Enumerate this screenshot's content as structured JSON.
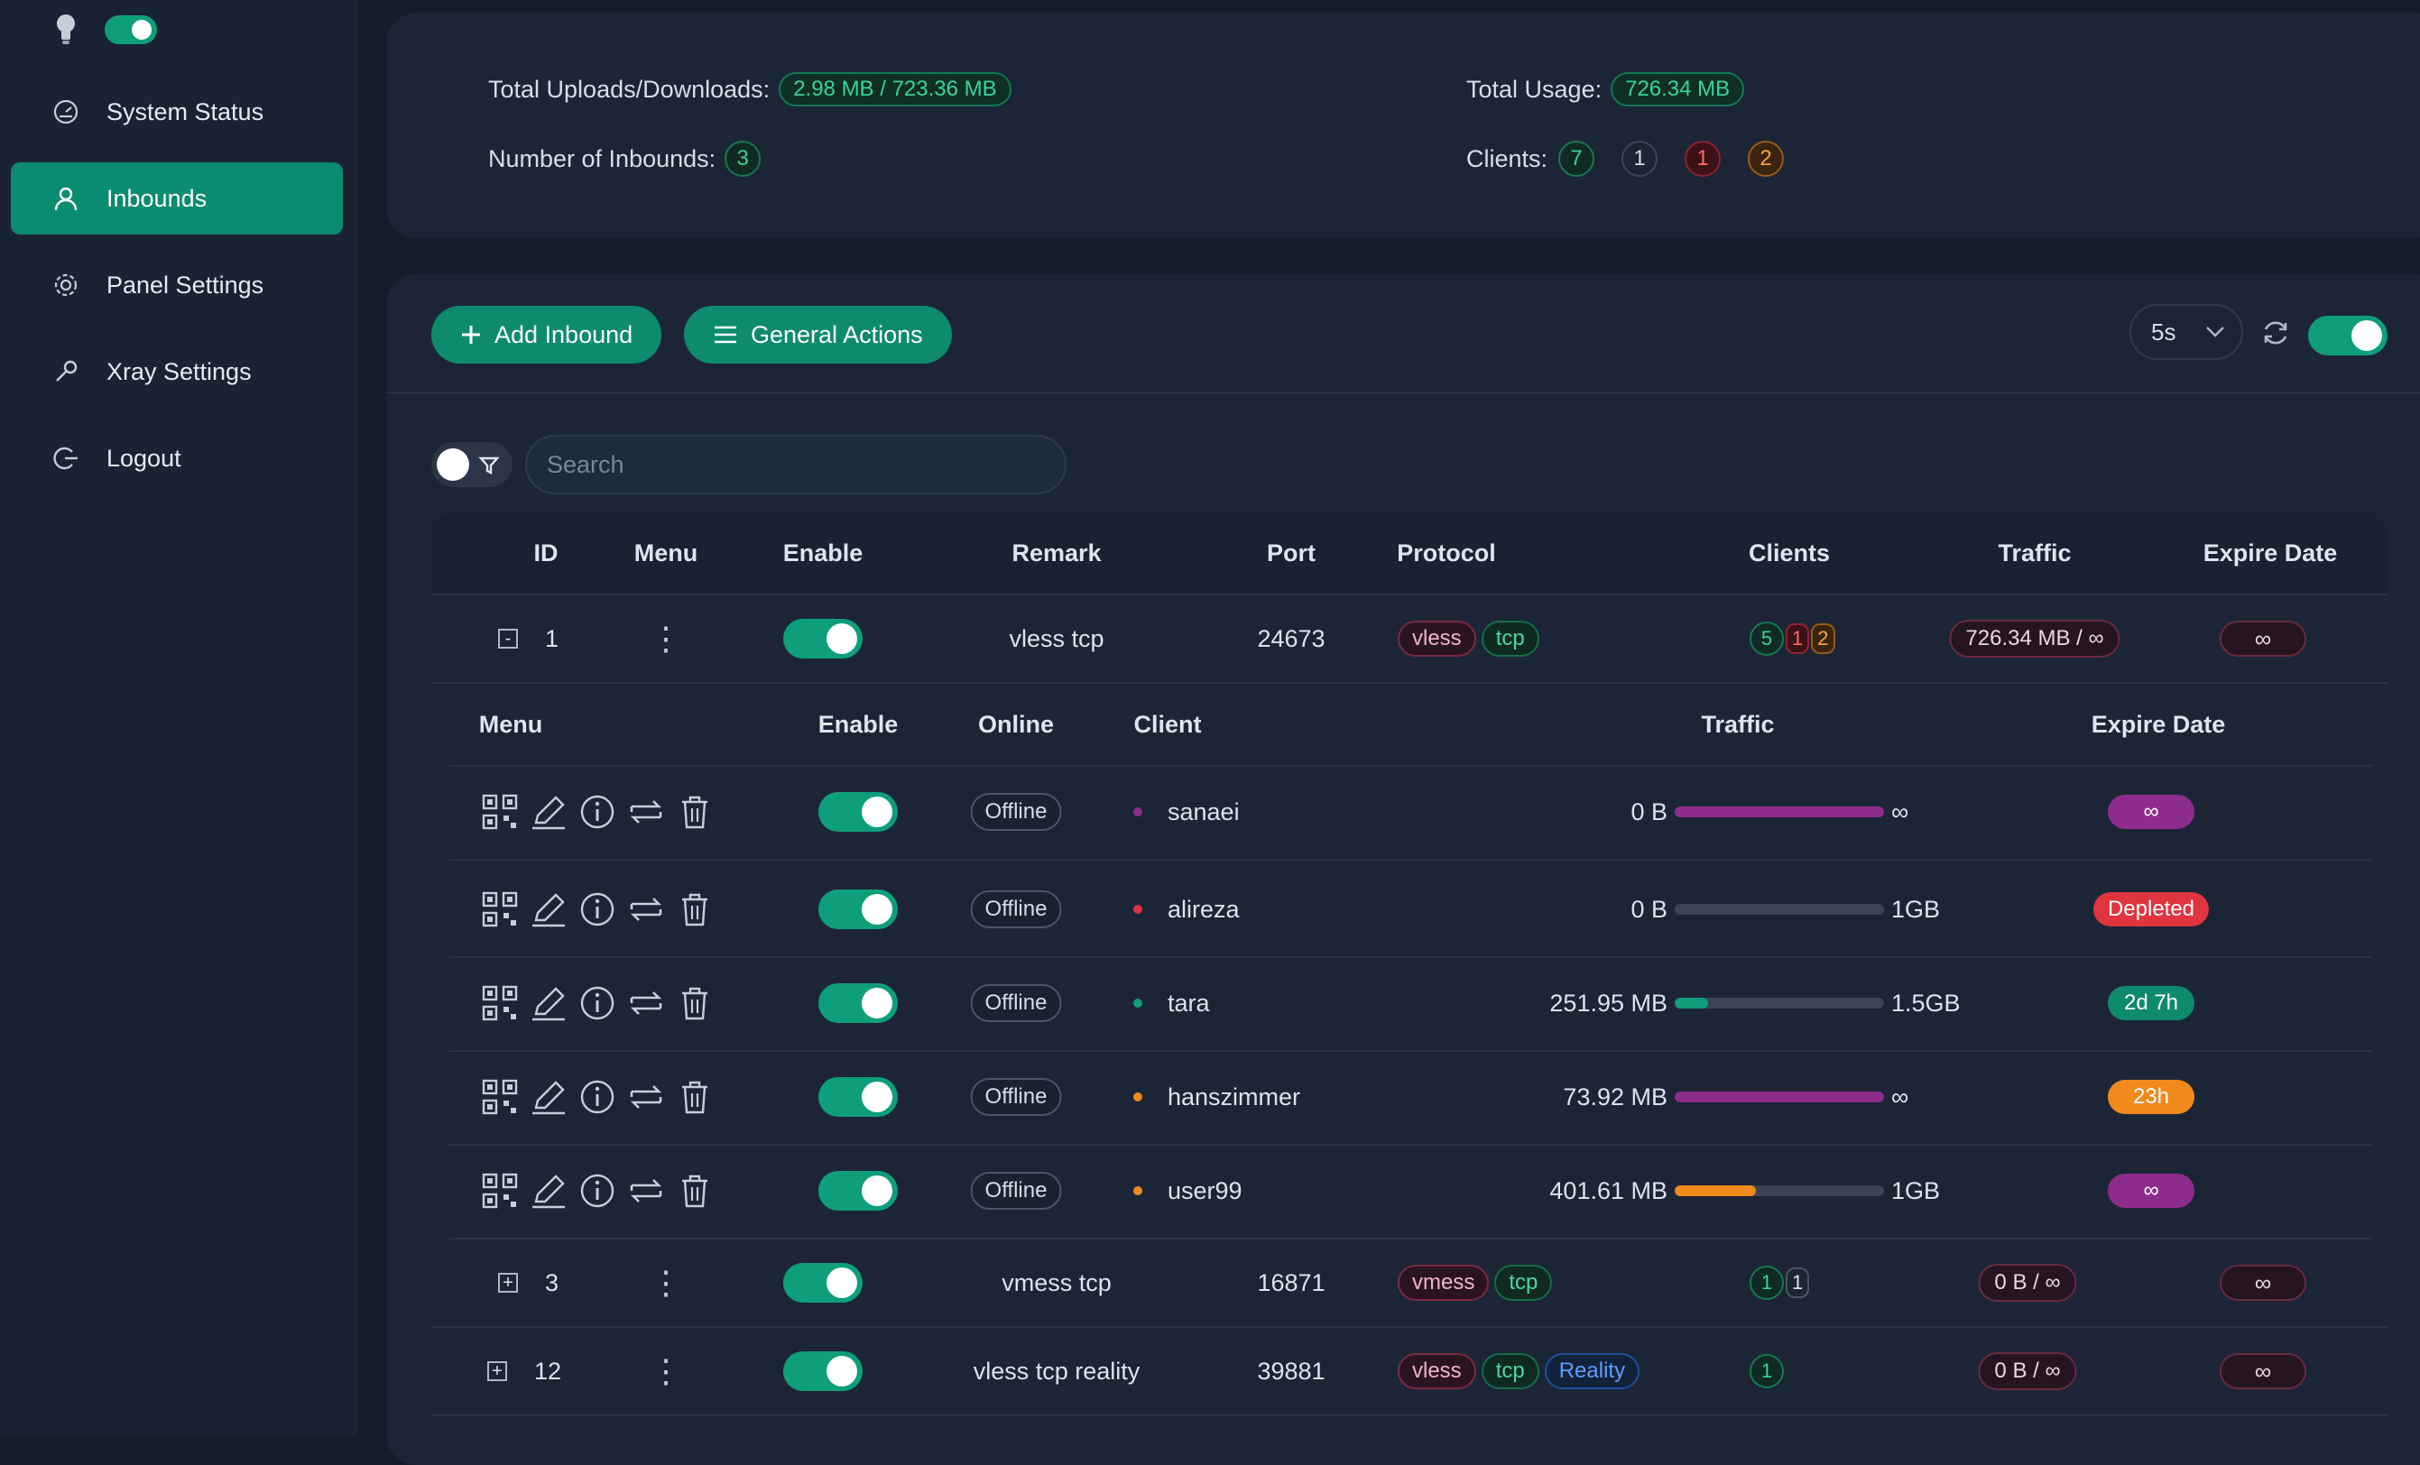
{
  "sidebar": {
    "items": [
      {
        "label": "System Status",
        "icon": "gauge-icon"
      },
      {
        "label": "Inbounds",
        "icon": "user-icon",
        "active": true
      },
      {
        "label": "Panel Settings",
        "icon": "gear-icon"
      },
      {
        "label": "Xray Settings",
        "icon": "wrench-icon"
      },
      {
        "label": "Logout",
        "icon": "logout-icon"
      }
    ]
  },
  "stats": {
    "uploads_label": "Total Uploads/Downloads:",
    "uploads_value": "2.98 MB / 723.36 MB",
    "usage_label": "Total Usage:",
    "usage_value": "726.34 MB",
    "inbounds_label": "Number of Inbounds:",
    "inbounds_value": "3",
    "clients_label": "Clients:",
    "clients_counts": [
      "7",
      "1",
      "1",
      "2"
    ]
  },
  "toolbar": {
    "add_label": "Add Inbound",
    "actions_label": "General Actions",
    "interval": "5s",
    "search_placeholder": "Search"
  },
  "colors": {
    "accent": "#0e8b6d",
    "red": "#e0343f",
    "orange": "#f08a1c",
    "purple": "#8e2c8c",
    "teal": "#0f9e7a"
  },
  "table": {
    "headers": {
      "id": "ID",
      "menu": "Menu",
      "enable": "Enable",
      "remark": "Remark",
      "port": "Port",
      "protocol": "Protocol",
      "clients": "Clients",
      "traffic": "Traffic",
      "expire": "Expire Date"
    },
    "rows": [
      {
        "toggle": "-",
        "id": "1",
        "remark": "vless tcp",
        "port": "24673",
        "protocols": [
          "vless",
          "tcp"
        ],
        "clients": [
          "5",
          "1",
          "2"
        ],
        "traffic": "726.34 MB / ∞",
        "expire": "∞"
      },
      {
        "toggle": "+",
        "id": "3",
        "remark": "vmess tcp",
        "port": "16871",
        "protocols": [
          "vmess",
          "tcp"
        ],
        "clients": [
          "1",
          "1"
        ],
        "traffic": "0 B / ∞",
        "expire": "∞"
      },
      {
        "toggle": "+",
        "id": "12",
        "remark": "vless tcp reality",
        "port": "39881",
        "protocols": [
          "vless",
          "tcp",
          "Reality"
        ],
        "clients": [
          "1"
        ],
        "traffic": "0 B / ∞",
        "expire": "∞"
      }
    ]
  },
  "subtable": {
    "headers": {
      "menu": "Menu",
      "enable": "Enable",
      "online": "Online",
      "client": "Client",
      "traffic": "Traffic",
      "expire": "Expire Date"
    },
    "rows": [
      {
        "status": "Offline",
        "client": "sanaei",
        "used": "0 B",
        "limit": "∞",
        "usage_fraction": 1.0,
        "bar_color": "#8e2c8c",
        "expire": "∞",
        "expire_color": "#8e2c8c",
        "dot": "#8e2c8c"
      },
      {
        "status": "Offline",
        "client": "alireza",
        "used": "0 B",
        "limit": "1GB",
        "usage_fraction": 0.0,
        "bar_color": "#0e8b6d",
        "expire": "Depleted",
        "expire_color": "#e0343f",
        "dot": "#e0343f"
      },
      {
        "status": "Offline",
        "client": "tara",
        "used": "251.95 MB",
        "limit": "1.5GB",
        "usage_fraction": 0.16,
        "bar_color": "#0f9e7a",
        "expire": "2d 7h",
        "expire_color": "#0e8b6d",
        "dot": "#0f9e7a"
      },
      {
        "status": "Offline",
        "client": "hanszimmer",
        "used": "73.92 MB",
        "limit": "∞",
        "usage_fraction": 1.0,
        "bar_color": "#8e2c8c",
        "expire": "23h",
        "expire_color": "#f08a1c",
        "dot": "#f08a1c"
      },
      {
        "status": "Offline",
        "client": "user99",
        "used": "401.61 MB",
        "limit": "1GB",
        "usage_fraction": 0.39,
        "bar_color": "#f08a1c",
        "expire": "∞",
        "expire_color": "#8e2c8c",
        "dot": "#f08a1c"
      }
    ]
  }
}
